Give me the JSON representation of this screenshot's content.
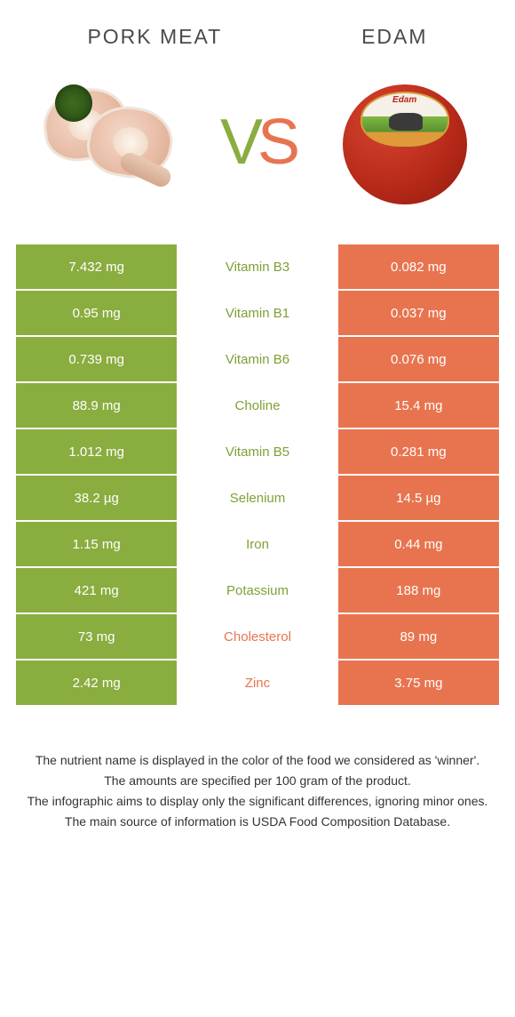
{
  "header": {
    "left_title": "Pork meat",
    "right_title": "Edam",
    "vs_v": "V",
    "vs_s": "S"
  },
  "edam_label": "Edam",
  "colors": {
    "green": "#8aad3f",
    "orange": "#e8744f",
    "green_text": "#7ea135",
    "orange_text": "#e8744f"
  },
  "table": {
    "rows": [
      {
        "left": "7.432 mg",
        "nutrient": "Vitamin B3",
        "right": "0.082 mg",
        "winner": "left"
      },
      {
        "left": "0.95 mg",
        "nutrient": "Vitamin B1",
        "right": "0.037 mg",
        "winner": "left"
      },
      {
        "left": "0.739 mg",
        "nutrient": "Vitamin B6",
        "right": "0.076 mg",
        "winner": "left"
      },
      {
        "left": "88.9 mg",
        "nutrient": "Choline",
        "right": "15.4 mg",
        "winner": "left"
      },
      {
        "left": "1.012 mg",
        "nutrient": "Vitamin B5",
        "right": "0.281 mg",
        "winner": "left"
      },
      {
        "left": "38.2 µg",
        "nutrient": "Selenium",
        "right": "14.5 µg",
        "winner": "left"
      },
      {
        "left": "1.15 mg",
        "nutrient": "Iron",
        "right": "0.44 mg",
        "winner": "left"
      },
      {
        "left": "421 mg",
        "nutrient": "Potassium",
        "right": "188 mg",
        "winner": "left"
      },
      {
        "left": "73 mg",
        "nutrient": "Cholesterol",
        "right": "89 mg",
        "winner": "right"
      },
      {
        "left": "2.42 mg",
        "nutrient": "Zinc",
        "right": "3.75 mg",
        "winner": "right"
      }
    ]
  },
  "footer": {
    "line1": "The nutrient name is displayed in the color of the food we considered as 'winner'.",
    "line2": "The amounts are specified per 100 gram of the product.",
    "line3": "The infographic aims to display only the significant differences, ignoring minor ones.",
    "line4": "The main source of information is USDA Food Composition Database."
  }
}
